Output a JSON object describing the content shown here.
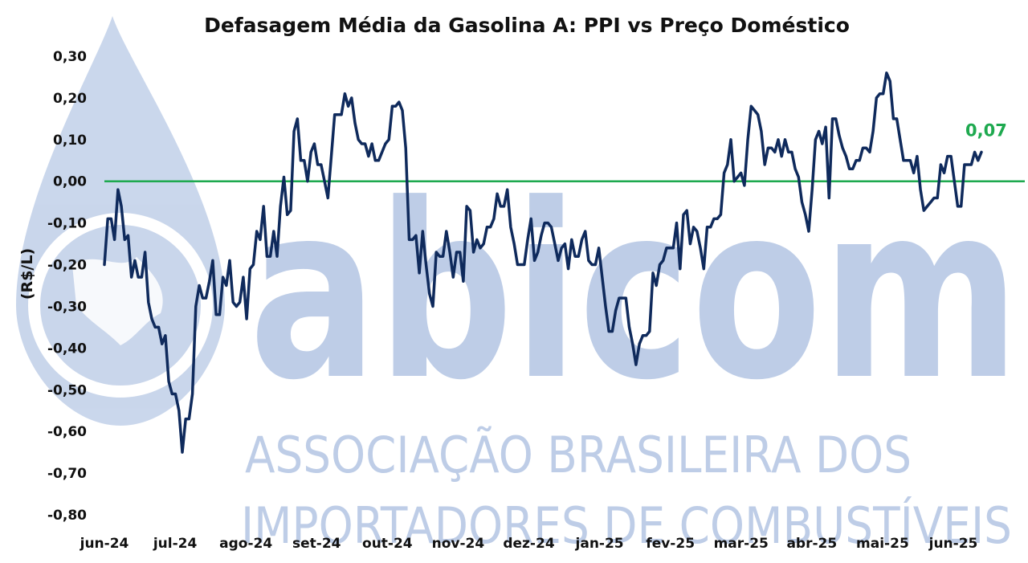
{
  "colors": {
    "series": "#0f2a5c",
    "zero_line": "#1ea94f",
    "label": "#1ea94f",
    "watermark": "#8aa6d4"
  },
  "watermark": {
    "brand": "abicom",
    "line1": "ASSOCIAÇÃO BRASILEIRA DOS",
    "line2": "IMPORTADORES DE COMBUSTÍVEIS"
  },
  "chart_data": {
    "type": "line",
    "title": "Defasagem Média da Gasolina A: PPI vs Preço Doméstico",
    "xlabel": "",
    "ylabel": "(R$/L)",
    "ylim": [
      -0.8,
      0.3
    ],
    "y_ticks": [
      "0,30",
      "0,20",
      "0,10",
      "0,00",
      "-0,10",
      "-0,20",
      "-0,30",
      "-0,40",
      "-0,50",
      "-0,60",
      "-0,70",
      "-0,80"
    ],
    "x_ticks": [
      "jun-24",
      "jul-24",
      "ago-24",
      "set-24",
      "out-24",
      "nov-24",
      "dez-24",
      "jan-25",
      "fev-25",
      "mar-25",
      "abr-25",
      "mai-25",
      "jun-25"
    ],
    "grid": false,
    "reference_line": 0.0,
    "last_value_label": "0,07",
    "series": [
      {
        "values": [
          -0.2,
          -0.09,
          -0.09,
          -0.14,
          -0.02,
          -0.06,
          -0.14,
          -0.13,
          -0.23,
          -0.19,
          -0.23,
          -0.23,
          -0.17,
          -0.29,
          -0.33,
          -0.35,
          -0.35,
          -0.39,
          -0.37,
          -0.48,
          -0.51,
          -0.51,
          -0.55,
          -0.65,
          -0.57,
          -0.57,
          -0.51,
          -0.3,
          -0.25,
          -0.28,
          -0.28,
          -0.24,
          -0.19,
          -0.32,
          -0.32,
          -0.23,
          -0.25,
          -0.19,
          -0.29,
          -0.3,
          -0.29,
          -0.23,
          -0.33,
          -0.21,
          -0.2,
          -0.12,
          -0.14,
          -0.06,
          -0.18,
          -0.18,
          -0.12,
          -0.18,
          -0.06,
          0.01,
          -0.08,
          -0.07,
          0.12,
          0.15,
          0.05,
          0.05,
          0.0,
          0.07,
          0.09,
          0.04,
          0.04,
          0.0,
          -0.04,
          0.06,
          0.16,
          0.16,
          0.16,
          0.21,
          0.18,
          0.2,
          0.14,
          0.1,
          0.09,
          0.09,
          0.06,
          0.09,
          0.05,
          0.05,
          0.07,
          0.09,
          0.1,
          0.18,
          0.18,
          0.19,
          0.17,
          0.08,
          -0.14,
          -0.14,
          -0.13,
          -0.22,
          -0.12,
          -0.2,
          -0.27,
          -0.3,
          -0.17,
          -0.18,
          -0.18,
          -0.12,
          -0.17,
          -0.23,
          -0.17,
          -0.17,
          -0.24,
          -0.06,
          -0.07,
          -0.17,
          -0.14,
          -0.16,
          -0.15,
          -0.11,
          -0.11,
          -0.09,
          -0.03,
          -0.06,
          -0.06,
          -0.02,
          -0.11,
          -0.15,
          -0.2,
          -0.2,
          -0.2,
          -0.14,
          -0.09,
          -0.19,
          -0.17,
          -0.13,
          -0.1,
          -0.1,
          -0.11,
          -0.15,
          -0.19,
          -0.16,
          -0.15,
          -0.21,
          -0.14,
          -0.18,
          -0.18,
          -0.14,
          -0.12,
          -0.19,
          -0.2,
          -0.2,
          -0.16,
          -0.23,
          -0.3,
          -0.36,
          -0.36,
          -0.31,
          -0.28,
          -0.28,
          -0.28,
          -0.35,
          -0.39,
          -0.44,
          -0.39,
          -0.37,
          -0.37,
          -0.36,
          -0.22,
          -0.25,
          -0.2,
          -0.19,
          -0.16,
          -0.16,
          -0.16,
          -0.1,
          -0.21,
          -0.08,
          -0.07,
          -0.15,
          -0.11,
          -0.12,
          -0.16,
          -0.21,
          -0.11,
          -0.11,
          -0.09,
          -0.09,
          -0.08,
          0.02,
          0.04,
          0.1,
          0.0,
          0.01,
          0.02,
          -0.01,
          0.1,
          0.18,
          0.17,
          0.16,
          0.12,
          0.04,
          0.08,
          0.08,
          0.07,
          0.1,
          0.06,
          0.1,
          0.07,
          0.07,
          0.03,
          0.01,
          -0.05,
          -0.08,
          -0.12,
          -0.02,
          0.1,
          0.12,
          0.09,
          0.13,
          -0.04,
          0.15,
          0.15,
          0.11,
          0.08,
          0.06,
          0.03,
          0.03,
          0.05,
          0.05,
          0.08,
          0.08,
          0.07,
          0.12,
          0.2,
          0.21,
          0.21,
          0.26,
          0.24,
          0.15,
          0.15,
          0.1,
          0.05,
          0.05,
          0.05,
          0.02,
          0.06,
          -0.02,
          -0.07,
          -0.06,
          -0.05,
          -0.04,
          -0.04,
          0.04,
          0.02,
          0.06,
          0.06,
          0.0,
          -0.06,
          -0.06,
          0.04,
          0.04,
          0.04,
          0.07,
          0.05,
          0.07
        ]
      }
    ]
  }
}
